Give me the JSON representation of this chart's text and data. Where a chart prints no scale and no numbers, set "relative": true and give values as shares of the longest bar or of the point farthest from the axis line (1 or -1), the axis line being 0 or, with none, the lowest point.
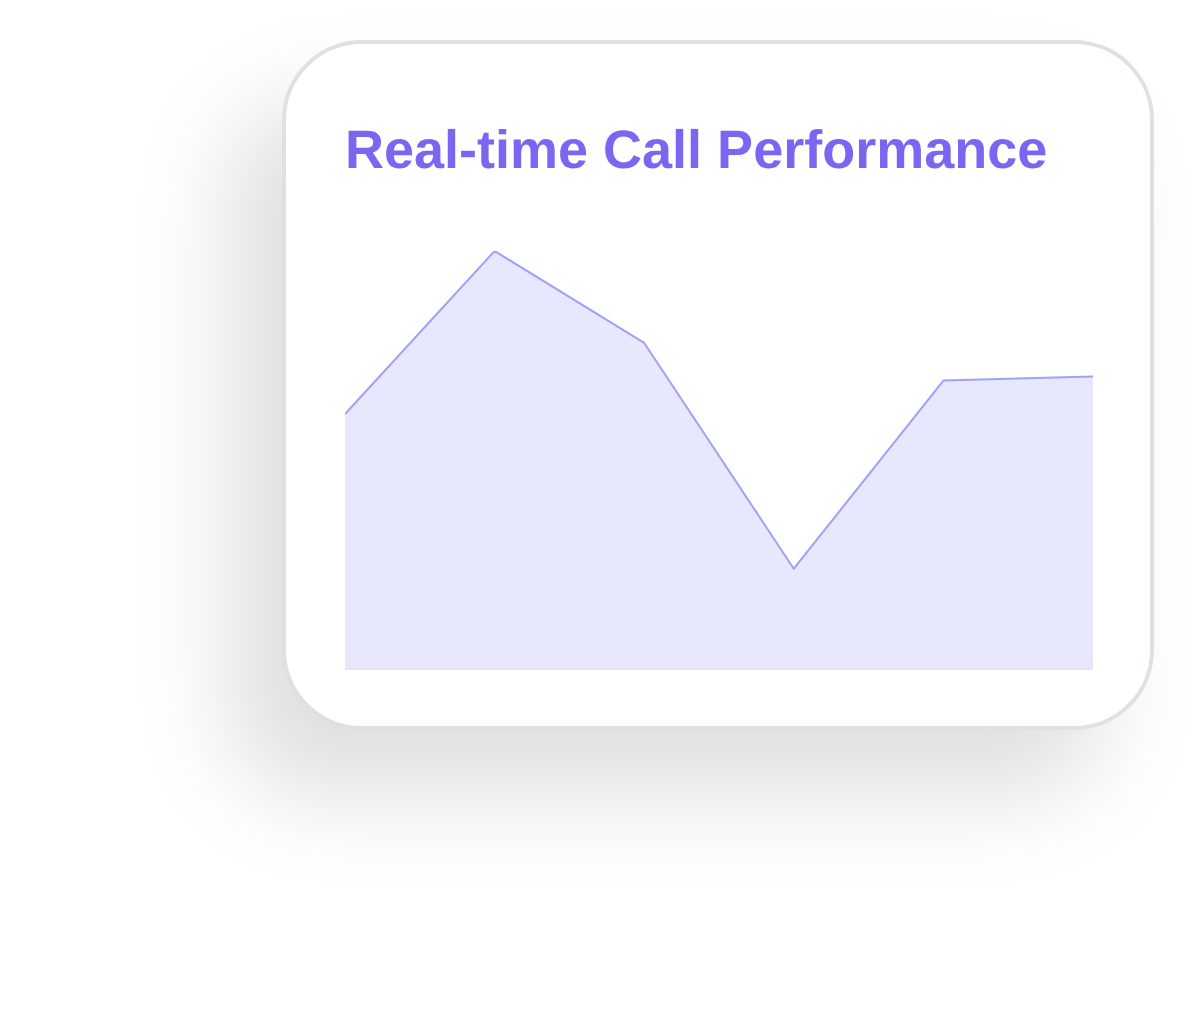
{
  "chart_data": {
    "type": "area",
    "title": "Real-time Call Performance",
    "categories": [
      null,
      null,
      null,
      null,
      null,
      null
    ],
    "relative": true,
    "series": [
      {
        "color": "#a0a0f8",
        "values": [
          0.61,
          1,
          0.78,
          0.24,
          0.69,
          0.7
        ]
      }
    ],
    "grid": false
  }
}
